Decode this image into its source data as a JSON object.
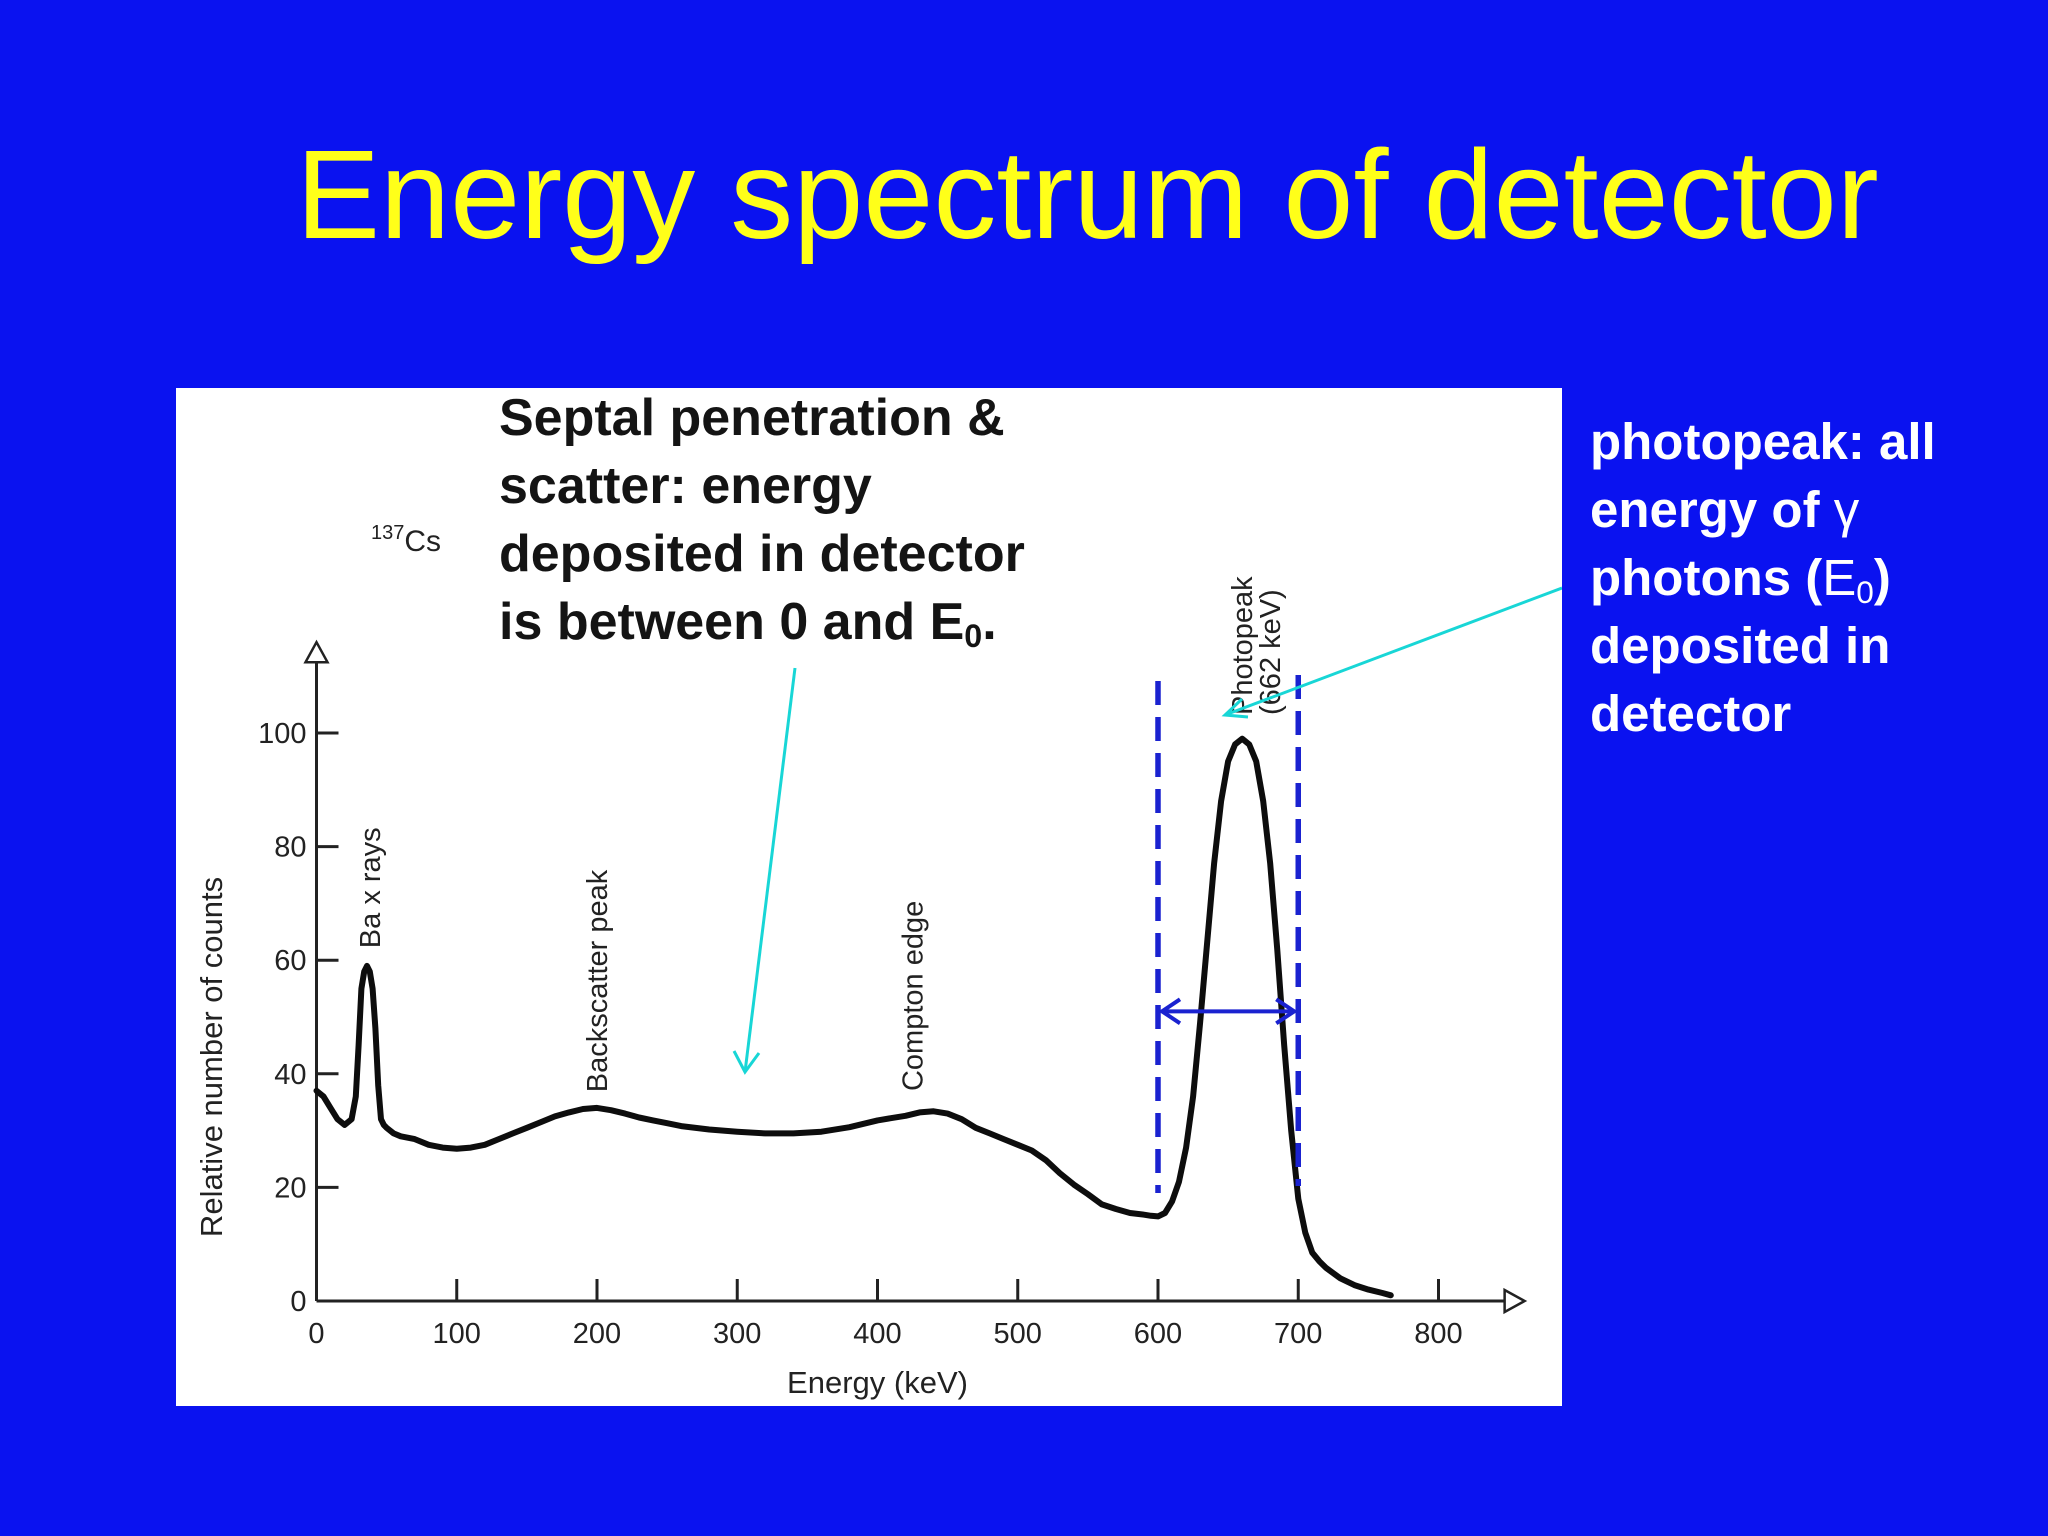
{
  "slide": {
    "title": "Energy spectrum of detector",
    "background_color": "#0a12f0",
    "title_color": "#ffff19"
  },
  "annotations": {
    "scatter_note": {
      "line1": "Septal penetration &",
      "line2": "scatter: energy",
      "line3": "deposited in detector",
      "line4_prefix": "is between 0 and E",
      "line4_sub": "0",
      "line4_suffix": "."
    },
    "photopeak_note": {
      "line1": "photopeak: all",
      "line2_prefix": "energy of ",
      "line2_symbol": "γ",
      "line3_prefix": "photons (",
      "line3_E": "E",
      "line3_sub": "0",
      "line3_suffix": ")",
      "line4": "deposited in",
      "line5": "detector"
    },
    "arrow_color": "#18d6d6",
    "window_color": "#1a22d0"
  },
  "chart_data": {
    "type": "line",
    "isotope_label": "137",
    "isotope_symbol": "Cs",
    "xlabel": "Energy (keV)",
    "ylabel": "Relative number of counts",
    "xlim": [
      0,
      850
    ],
    "ylim": [
      0,
      110
    ],
    "xticks": [
      0,
      100,
      200,
      300,
      400,
      500,
      600,
      700,
      800
    ],
    "yticks": [
      0,
      20,
      40,
      60,
      80,
      100
    ],
    "grid": false,
    "series": [
      {
        "x": [
          0,
          5,
          10,
          15,
          20,
          25,
          28,
          30,
          32,
          34,
          36,
          38,
          40,
          42,
          44,
          46,
          48,
          50,
          55,
          60,
          70,
          80,
          90,
          100,
          110,
          120,
          130,
          140,
          150,
          160,
          170,
          180,
          190,
          200,
          210,
          220,
          230,
          240,
          250,
          260,
          280,
          300,
          320,
          340,
          360,
          380,
          400,
          410,
          420,
          430,
          440,
          450,
          460,
          470,
          480,
          490,
          500,
          510,
          520,
          530,
          540,
          550,
          560,
          570,
          580,
          590,
          595,
          600,
          605,
          610,
          615,
          620,
          625,
          630,
          635,
          640,
          645,
          650,
          655,
          660,
          665,
          670,
          675,
          680,
          685,
          690,
          695,
          700,
          705,
          710,
          715,
          720,
          730,
          740,
          750,
          760,
          766
        ],
        "values": [
          37,
          36,
          34,
          32,
          31,
          32,
          36,
          45,
          55,
          58,
          59,
          58,
          55,
          48,
          38,
          32,
          31,
          30.5,
          29.5,
          29,
          28.5,
          27.5,
          27,
          26.8,
          27,
          27.5,
          28.5,
          29.5,
          30.5,
          31.5,
          32.5,
          33.2,
          33.8,
          34,
          33.6,
          33,
          32.3,
          31.8,
          31.3,
          30.8,
          30.2,
          29.8,
          29.5,
          29.5,
          29.8,
          30.6,
          31.8,
          32.2,
          32.6,
          33.2,
          33.4,
          33,
          32,
          30.5,
          29.5,
          28.5,
          27.5,
          26.5,
          24.8,
          22.5,
          20.5,
          18.8,
          17,
          16.2,
          15.5,
          15.2,
          15,
          14.9,
          15.5,
          17.5,
          21,
          27,
          36,
          49,
          63,
          77,
          88,
          95,
          98,
          99,
          98,
          95,
          88,
          77,
          62,
          45,
          30,
          18,
          12,
          8.5,
          7,
          5.8,
          4,
          2.8,
          2,
          1.4,
          1
        ]
      }
    ],
    "peak_labels": [
      {
        "text": "Ba x rays",
        "x": 38,
        "y": 60
      },
      {
        "text": "Backscatter peak",
        "x": 200,
        "y": 35
      },
      {
        "text": "Compton edge",
        "x": 425,
        "y": 34.5
      },
      {
        "text": "Photopeak",
        "x": 660,
        "y": 100
      },
      {
        "text": "(662 keV)",
        "x": 680,
        "y": 100
      }
    ],
    "energy_window": {
      "lower": 600,
      "upper": 700,
      "arrow_y": 51
    }
  }
}
